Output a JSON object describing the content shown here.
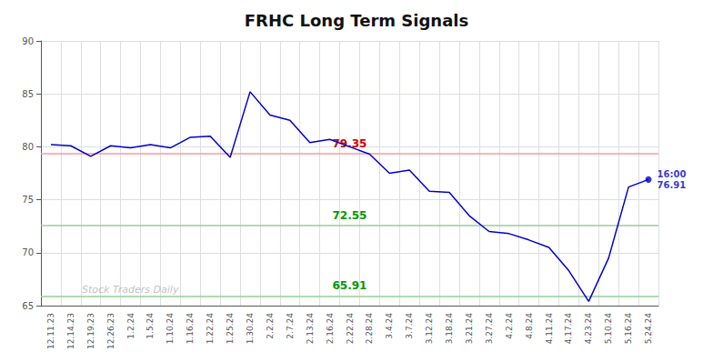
{
  "chart_data": {
    "type": "line",
    "title": "FRHC Long Term Signals",
    "categories": [
      "12.11.23",
      "12.14.23",
      "12.19.23",
      "12.26.23",
      "1.2.24",
      "1.5.24",
      "1.10.24",
      "1.16.24",
      "1.22.24",
      "1.25.24",
      "1.30.24",
      "2.2.24",
      "2.7.24",
      "2.13.24",
      "2.16.24",
      "2.22.24",
      "2.28.24",
      "3.4.24",
      "3.7.24",
      "3.12.24",
      "3.18.24",
      "3.21.24",
      "3.27.24",
      "4.2.24",
      "4.8.24",
      "4.11.24",
      "4.17.24",
      "4.23.24",
      "5.10.24",
      "5.16.24",
      "5.24.24"
    ],
    "values": [
      80.2,
      80.1,
      79.1,
      80.1,
      79.9,
      80.2,
      79.9,
      80.9,
      81.0,
      79.0,
      85.2,
      83.0,
      82.5,
      80.4,
      80.7,
      80.0,
      79.3,
      77.5,
      77.8,
      75.8,
      75.7,
      73.5,
      72.0,
      71.8,
      71.2,
      70.5,
      68.3,
      65.4,
      69.5,
      76.2,
      76.91
    ],
    "color": "#0000cc",
    "hlines": [
      {
        "value": 79.35,
        "label": "79.35",
        "color": "#ff9999",
        "label_color": "#cc0000"
      },
      {
        "value": 72.55,
        "label": "72.55",
        "color": "#99cc99",
        "label_color": "#009900"
      },
      {
        "value": 65.91,
        "label": "65.91",
        "color": "#99cc99",
        "label_color": "#009900"
      }
    ],
    "annotations": [
      {
        "x": "5.24.24",
        "y": 76.91,
        "text": "16:00\n76.91",
        "marker": "circle"
      }
    ],
    "watermark": "Stock Traders Daily",
    "ylim": [
      65,
      90
    ],
    "yticks": [
      65,
      70,
      75,
      80,
      85,
      90
    ],
    "grid": true
  }
}
